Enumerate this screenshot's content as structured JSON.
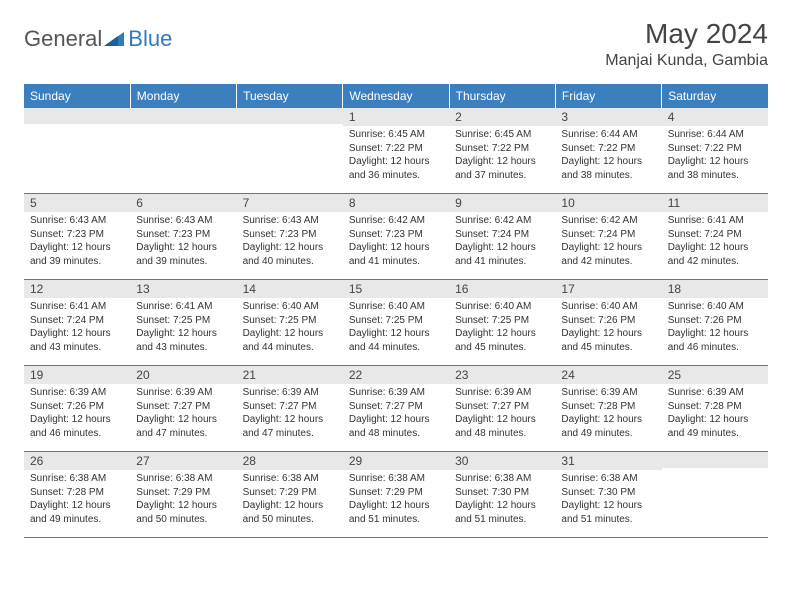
{
  "logo": {
    "general": "General",
    "blue": "Blue"
  },
  "title": "May 2024",
  "location": "Manjai Kunda, Gambia",
  "colors": {
    "header_bg": "#3b7fbf",
    "header_text": "#ffffff",
    "daynum_bg": "#e8e8e8",
    "border": "#3b7fbf",
    "logo_blue": "#2f7bbf"
  },
  "day_headers": [
    "Sunday",
    "Monday",
    "Tuesday",
    "Wednesday",
    "Thursday",
    "Friday",
    "Saturday"
  ],
  "weeks": [
    [
      {
        "num": "",
        "sunrise": "",
        "sunset": "",
        "daylight1": "",
        "daylight2": ""
      },
      {
        "num": "",
        "sunrise": "",
        "sunset": "",
        "daylight1": "",
        "daylight2": ""
      },
      {
        "num": "",
        "sunrise": "",
        "sunset": "",
        "daylight1": "",
        "daylight2": ""
      },
      {
        "num": "1",
        "sunrise": "Sunrise: 6:45 AM",
        "sunset": "Sunset: 7:22 PM",
        "daylight1": "Daylight: 12 hours",
        "daylight2": "and 36 minutes."
      },
      {
        "num": "2",
        "sunrise": "Sunrise: 6:45 AM",
        "sunset": "Sunset: 7:22 PM",
        "daylight1": "Daylight: 12 hours",
        "daylight2": "and 37 minutes."
      },
      {
        "num": "3",
        "sunrise": "Sunrise: 6:44 AM",
        "sunset": "Sunset: 7:22 PM",
        "daylight1": "Daylight: 12 hours",
        "daylight2": "and 38 minutes."
      },
      {
        "num": "4",
        "sunrise": "Sunrise: 6:44 AM",
        "sunset": "Sunset: 7:22 PM",
        "daylight1": "Daylight: 12 hours",
        "daylight2": "and 38 minutes."
      }
    ],
    [
      {
        "num": "5",
        "sunrise": "Sunrise: 6:43 AM",
        "sunset": "Sunset: 7:23 PM",
        "daylight1": "Daylight: 12 hours",
        "daylight2": "and 39 minutes."
      },
      {
        "num": "6",
        "sunrise": "Sunrise: 6:43 AM",
        "sunset": "Sunset: 7:23 PM",
        "daylight1": "Daylight: 12 hours",
        "daylight2": "and 39 minutes."
      },
      {
        "num": "7",
        "sunrise": "Sunrise: 6:43 AM",
        "sunset": "Sunset: 7:23 PM",
        "daylight1": "Daylight: 12 hours",
        "daylight2": "and 40 minutes."
      },
      {
        "num": "8",
        "sunrise": "Sunrise: 6:42 AM",
        "sunset": "Sunset: 7:23 PM",
        "daylight1": "Daylight: 12 hours",
        "daylight2": "and 41 minutes."
      },
      {
        "num": "9",
        "sunrise": "Sunrise: 6:42 AM",
        "sunset": "Sunset: 7:24 PM",
        "daylight1": "Daylight: 12 hours",
        "daylight2": "and 41 minutes."
      },
      {
        "num": "10",
        "sunrise": "Sunrise: 6:42 AM",
        "sunset": "Sunset: 7:24 PM",
        "daylight1": "Daylight: 12 hours",
        "daylight2": "and 42 minutes."
      },
      {
        "num": "11",
        "sunrise": "Sunrise: 6:41 AM",
        "sunset": "Sunset: 7:24 PM",
        "daylight1": "Daylight: 12 hours",
        "daylight2": "and 42 minutes."
      }
    ],
    [
      {
        "num": "12",
        "sunrise": "Sunrise: 6:41 AM",
        "sunset": "Sunset: 7:24 PM",
        "daylight1": "Daylight: 12 hours",
        "daylight2": "and 43 minutes."
      },
      {
        "num": "13",
        "sunrise": "Sunrise: 6:41 AM",
        "sunset": "Sunset: 7:25 PM",
        "daylight1": "Daylight: 12 hours",
        "daylight2": "and 43 minutes."
      },
      {
        "num": "14",
        "sunrise": "Sunrise: 6:40 AM",
        "sunset": "Sunset: 7:25 PM",
        "daylight1": "Daylight: 12 hours",
        "daylight2": "and 44 minutes."
      },
      {
        "num": "15",
        "sunrise": "Sunrise: 6:40 AM",
        "sunset": "Sunset: 7:25 PM",
        "daylight1": "Daylight: 12 hours",
        "daylight2": "and 44 minutes."
      },
      {
        "num": "16",
        "sunrise": "Sunrise: 6:40 AM",
        "sunset": "Sunset: 7:25 PM",
        "daylight1": "Daylight: 12 hours",
        "daylight2": "and 45 minutes."
      },
      {
        "num": "17",
        "sunrise": "Sunrise: 6:40 AM",
        "sunset": "Sunset: 7:26 PM",
        "daylight1": "Daylight: 12 hours",
        "daylight2": "and 45 minutes."
      },
      {
        "num": "18",
        "sunrise": "Sunrise: 6:40 AM",
        "sunset": "Sunset: 7:26 PM",
        "daylight1": "Daylight: 12 hours",
        "daylight2": "and 46 minutes."
      }
    ],
    [
      {
        "num": "19",
        "sunrise": "Sunrise: 6:39 AM",
        "sunset": "Sunset: 7:26 PM",
        "daylight1": "Daylight: 12 hours",
        "daylight2": "and 46 minutes."
      },
      {
        "num": "20",
        "sunrise": "Sunrise: 6:39 AM",
        "sunset": "Sunset: 7:27 PM",
        "daylight1": "Daylight: 12 hours",
        "daylight2": "and 47 minutes."
      },
      {
        "num": "21",
        "sunrise": "Sunrise: 6:39 AM",
        "sunset": "Sunset: 7:27 PM",
        "daylight1": "Daylight: 12 hours",
        "daylight2": "and 47 minutes."
      },
      {
        "num": "22",
        "sunrise": "Sunrise: 6:39 AM",
        "sunset": "Sunset: 7:27 PM",
        "daylight1": "Daylight: 12 hours",
        "daylight2": "and 48 minutes."
      },
      {
        "num": "23",
        "sunrise": "Sunrise: 6:39 AM",
        "sunset": "Sunset: 7:27 PM",
        "daylight1": "Daylight: 12 hours",
        "daylight2": "and 48 minutes."
      },
      {
        "num": "24",
        "sunrise": "Sunrise: 6:39 AM",
        "sunset": "Sunset: 7:28 PM",
        "daylight1": "Daylight: 12 hours",
        "daylight2": "and 49 minutes."
      },
      {
        "num": "25",
        "sunrise": "Sunrise: 6:39 AM",
        "sunset": "Sunset: 7:28 PM",
        "daylight1": "Daylight: 12 hours",
        "daylight2": "and 49 minutes."
      }
    ],
    [
      {
        "num": "26",
        "sunrise": "Sunrise: 6:38 AM",
        "sunset": "Sunset: 7:28 PM",
        "daylight1": "Daylight: 12 hours",
        "daylight2": "and 49 minutes."
      },
      {
        "num": "27",
        "sunrise": "Sunrise: 6:38 AM",
        "sunset": "Sunset: 7:29 PM",
        "daylight1": "Daylight: 12 hours",
        "daylight2": "and 50 minutes."
      },
      {
        "num": "28",
        "sunrise": "Sunrise: 6:38 AM",
        "sunset": "Sunset: 7:29 PM",
        "daylight1": "Daylight: 12 hours",
        "daylight2": "and 50 minutes."
      },
      {
        "num": "29",
        "sunrise": "Sunrise: 6:38 AM",
        "sunset": "Sunset: 7:29 PM",
        "daylight1": "Daylight: 12 hours",
        "daylight2": "and 51 minutes."
      },
      {
        "num": "30",
        "sunrise": "Sunrise: 6:38 AM",
        "sunset": "Sunset: 7:30 PM",
        "daylight1": "Daylight: 12 hours",
        "daylight2": "and 51 minutes."
      },
      {
        "num": "31",
        "sunrise": "Sunrise: 6:38 AM",
        "sunset": "Sunset: 7:30 PM",
        "daylight1": "Daylight: 12 hours",
        "daylight2": "and 51 minutes."
      },
      {
        "num": "",
        "sunrise": "",
        "sunset": "",
        "daylight1": "",
        "daylight2": ""
      }
    ]
  ]
}
